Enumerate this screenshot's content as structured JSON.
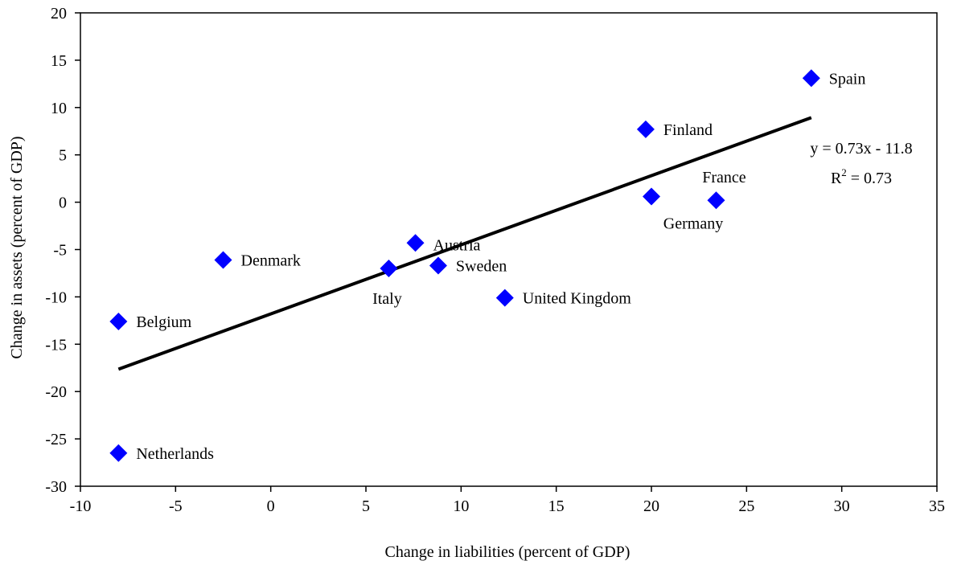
{
  "chart_data": {
    "type": "scatter",
    "xlabel": "Change in liabilities (percent of GDP)",
    "ylabel": "Change in assets (percent of GDP)",
    "xlim": [
      -10,
      35
    ],
    "ylim": [
      -30,
      20
    ],
    "xticks": [
      -10,
      -5,
      0,
      5,
      10,
      15,
      20,
      25,
      30,
      35
    ],
    "yticks": [
      -30,
      -25,
      -20,
      -15,
      -10,
      -5,
      0,
      5,
      10,
      15,
      20
    ],
    "grid": false,
    "legend": "none",
    "marker_color": "#0000ff",
    "trendline_color": "#000000",
    "points": [
      {
        "label": "Spain",
        "x": 28.4,
        "y": 13.1
      },
      {
        "label": "Finland",
        "x": 19.7,
        "y": 7.7
      },
      {
        "label": "France",
        "x": 23.4,
        "y": 0.2
      },
      {
        "label": "Germany",
        "x": 20.0,
        "y": 0.6
      },
      {
        "label": "Austria",
        "x": 7.6,
        "y": -4.3
      },
      {
        "label": "Denmark",
        "x": -2.5,
        "y": -6.1
      },
      {
        "label": "Italy",
        "x": 6.2,
        "y": -7.0
      },
      {
        "label": "Sweden",
        "x": 8.8,
        "y": -6.7
      },
      {
        "label": "United Kingdom",
        "x": 12.3,
        "y": -10.1
      },
      {
        "label": "Belgium",
        "x": -8.0,
        "y": -12.6
      },
      {
        "label": "Netherlands",
        "x": -8.0,
        "y": -26.5
      }
    ],
    "trendline": {
      "slope": 0.73,
      "intercept": -11.8,
      "x_range": [
        -8.0,
        28.4
      ]
    },
    "annotations": {
      "equation": "y = 0.73x - 11.8",
      "r_squared_prefix": "R",
      "r_squared_sup": "2",
      "r_squared_suffix": " = 0.73"
    }
  }
}
